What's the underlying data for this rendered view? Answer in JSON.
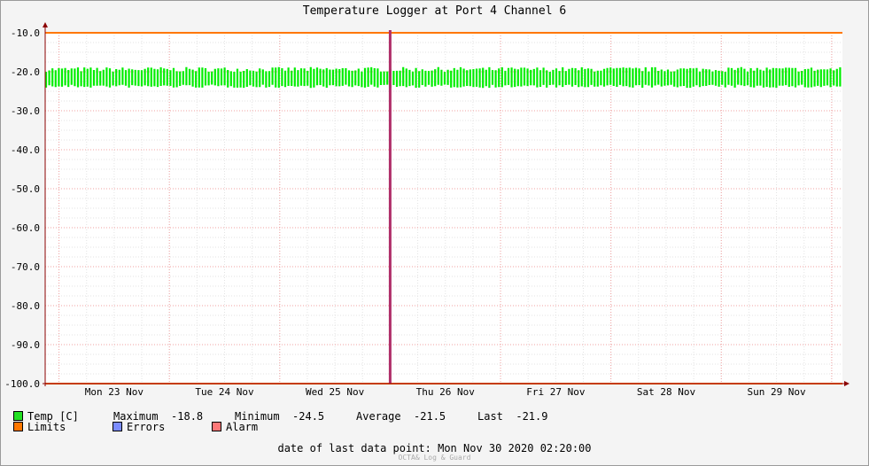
{
  "chart_data": {
    "type": "line",
    "title": "Temperature Logger at Port 4 Channel 6",
    "ylim": [
      -100,
      -10
    ],
    "yticks": [
      -10,
      -20,
      -30,
      -40,
      -50,
      -60,
      -70,
      -80,
      -90,
      -100
    ],
    "ytick_labels": [
      "-10.0",
      "-20.0",
      "-30.0",
      "-40.0",
      "-50.0",
      "-60.0",
      "-70.0",
      "-80.0",
      "-90.0",
      "-100.0"
    ],
    "xlim": [
      "2020-11-22 21:00",
      "2020-11-30 02:20"
    ],
    "xticks": [
      "2020-11-23 12:00",
      "2020-11-24 12:00",
      "2020-11-25 12:00",
      "2020-11-26 12:00",
      "2020-11-27 12:00",
      "2020-11-28 12:00",
      "2020-11-29 12:00"
    ],
    "xtick_labels": [
      "Mon 23 Nov",
      "Tue 24 Nov",
      "Wed 25 Nov",
      "Thu 26 Nov",
      "Fri 27 Nov",
      "Sat 28 Nov",
      "Sun 29 Nov"
    ],
    "grid": true,
    "series": [
      {
        "name": "Temp [C]",
        "color": "#00ee00",
        "kind": "band",
        "min": -24.5,
        "max": -18.8,
        "typical_low": -23.3,
        "typical_high": -20.0
      },
      {
        "name": "Limits",
        "color": "#ff7700",
        "kind": "hline",
        "values": [
          -10,
          -100
        ]
      }
    ],
    "annotations": [
      {
        "kind": "vline",
        "x": "2020-11-26 00:00",
        "color": "#b0306a"
      }
    ]
  },
  "legend": {
    "temp": {
      "label": "Temp [C]",
      "color": "#22e022"
    },
    "limits": {
      "label": "Limits",
      "color": "#ff7700"
    },
    "errors": {
      "label": "Errors",
      "color": "#7b8cff"
    },
    "alarm": {
      "label": "Alarm",
      "color": "#ff7878"
    }
  },
  "stats": {
    "maximum_label": "Maximum",
    "maximum_value": "-18.8",
    "minimum_label": "Minimum",
    "minimum_value": "-24.5",
    "average_label": "Average",
    "average_value": "-21.5",
    "last_label": "Last",
    "last_value": "-21.9"
  },
  "footer": {
    "date_text": "date of last data point:  Mon Nov 30 2020 02:20:00",
    "credit": "OCTA& Log & Guard"
  }
}
